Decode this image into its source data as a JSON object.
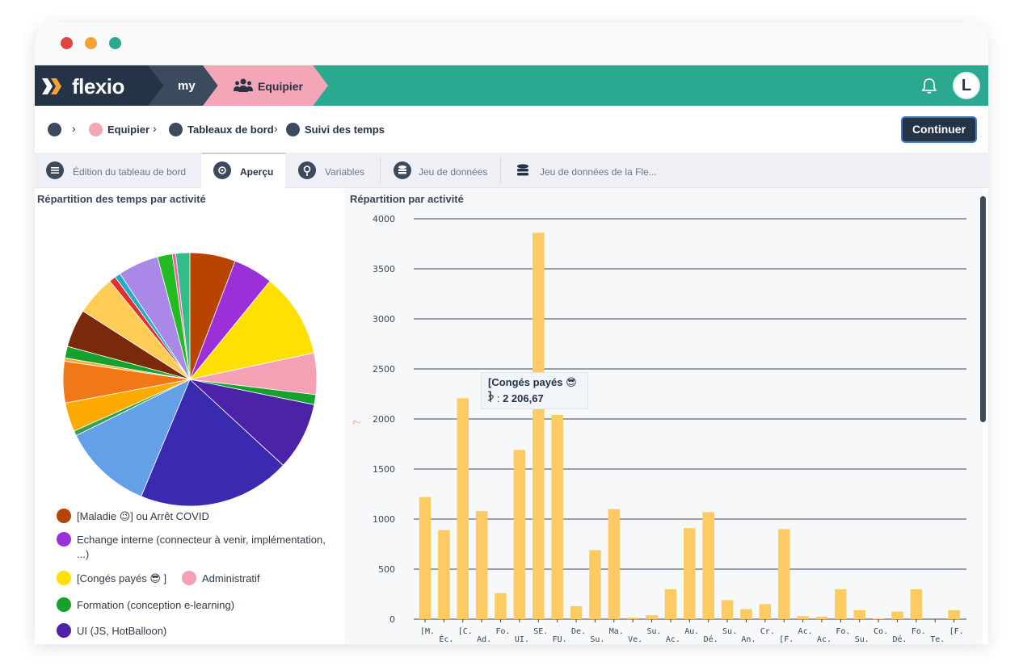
{
  "window": {
    "dots": [
      "#e0443e",
      "#f4a235",
      "#2aa990"
    ]
  },
  "appbar": {
    "logo_text": "flexio",
    "segment_my": "my",
    "segment_workspace": "Equipier",
    "user_initial": "L"
  },
  "breadcrumb": {
    "items": [
      "Equipier",
      "Tableaux de bord",
      "Suivi des temps"
    ],
    "continue_label": "Continuer"
  },
  "tabs": [
    {
      "label": "Édition du tableau de bord",
      "icon": "menu-icon",
      "active": false
    },
    {
      "label": "Aperçu",
      "icon": "preview-icon",
      "active": true
    },
    {
      "label": "Variables",
      "icon": "variables-icon",
      "active": false
    },
    {
      "label": "Jeu de données",
      "icon": "database-icon",
      "active": false
    },
    {
      "label": "Jeu de données de la Fle...",
      "icon": "database-icon",
      "active": false
    }
  ],
  "left_panel": {
    "title": "Répartition des temps par activité",
    "legend": [
      {
        "label": "[Maladie 😉] ou Arrêt COVID",
        "color": "#b84400"
      },
      {
        "label": "Echange interne (connecteur à venir, implémentation,",
        "label2": "...)",
        "color": "#9b30d9"
      },
      {
        "label": "[Congés payés 😎 ]",
        "color": "#ffe000"
      },
      {
        "label": "Administratif",
        "color": "#f5a0b4"
      },
      {
        "label": "Formation (conception e-learning)",
        "color": "#16a12c"
      },
      {
        "label": "UI (JS, HotBalloon)",
        "color": "#4b22a8"
      }
    ]
  },
  "chart_data": [
    {
      "type": "pie",
      "title": "Répartition des temps par activité",
      "colors": [
        "#b84400",
        "#9b30d9",
        "#ffe000",
        "#f5a0b4",
        "#16a12c",
        "#4b22a8",
        "#3a2ab0",
        "#64a0e8",
        "#38a050",
        "#ffaa00",
        "#f07818",
        "#ffaa33",
        "#16a12c",
        "#7a2a0a",
        "#ffcc55",
        "#e03030",
        "#1eb0c8",
        "#aa88e8",
        "#22bb22",
        "#ff55aa",
        "#33bb88"
      ],
      "values": [
        5.5,
        4.8,
        10.2,
        5.0,
        1.2,
        8.2,
        18.4,
        10.8,
        0.6,
        3.5,
        5.0,
        0.4,
        1.4,
        4.6,
        4.8,
        0.8,
        0.7,
        4.9,
        1.8,
        0.4,
        1.7
      ]
    },
    {
      "type": "bar",
      "title": "Répartition par activité",
      "ylabel": "?",
      "ylim": [
        0,
        4000
      ],
      "yticks": [
        0,
        500,
        1000,
        1500,
        2000,
        2500,
        3000,
        3500,
        4000
      ],
      "color": "#fdca63",
      "categories": [
        "[M.",
        "Éc.",
        "[C.",
        "Ad.",
        "Fo.",
        "UI.",
        "SE.",
        "FU.",
        "De.",
        "Su.",
        "Ma.",
        "Ve.",
        "Su.",
        "Ac.",
        "Au.",
        "Dé.",
        "Su.",
        "An.",
        "Cr.",
        "[F.",
        "Ac.",
        "Ac.",
        "Fo.",
        "Su.",
        "Co.",
        "Dé.",
        "Fo.",
        "Te.",
        "[F."
      ],
      "values": [
        1220,
        890,
        2206.67,
        1080,
        260,
        1690,
        3860,
        2040,
        130,
        690,
        1100,
        15,
        40,
        300,
        910,
        1070,
        190,
        100,
        150,
        900,
        30,
        25,
        300,
        90,
        5,
        75,
        300,
        0,
        90
      ],
      "tooltip": {
        "title": "[Congés payés 😎 ]",
        "label": "? : ",
        "value": "2 206,67"
      }
    }
  ]
}
